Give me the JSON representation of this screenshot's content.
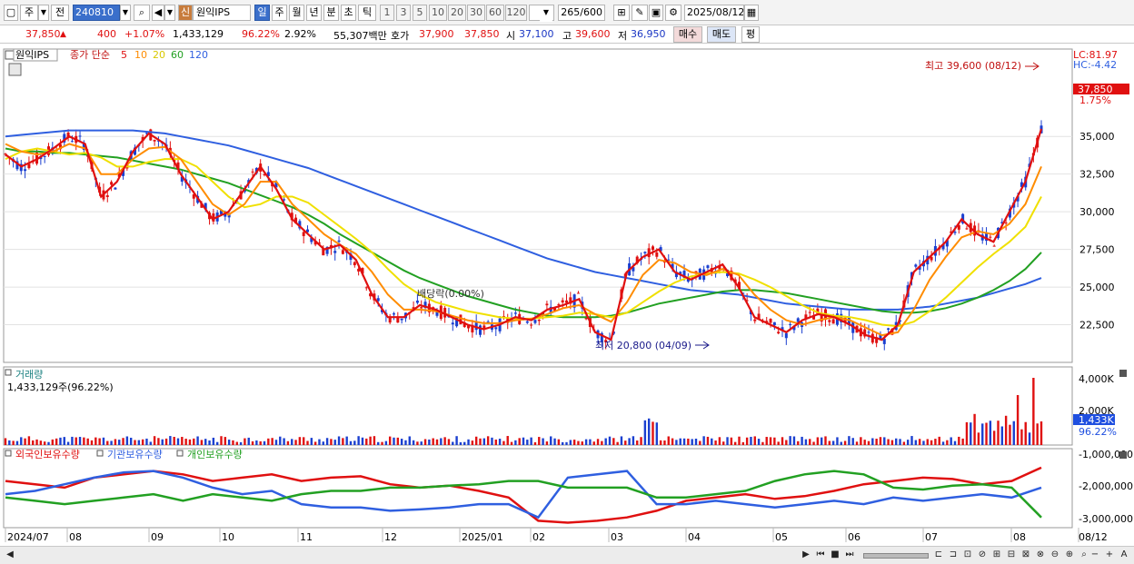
{
  "toolbar": {
    "market": "주",
    "prev": "전",
    "code": "240810",
    "new_tag": "신",
    "stock_name": "원익IPS",
    "periods": [
      "일",
      "주",
      "월",
      "년",
      "분",
      "초",
      "틱"
    ],
    "minutes": [
      "1",
      "3",
      "5",
      "10",
      "20",
      "30",
      "60",
      "120"
    ],
    "count": "265",
    "count_total": "/600",
    "date": "2025/08/12"
  },
  "info": {
    "price": "37,850",
    "change": "400",
    "change_pct": "+1.07%",
    "volume": "1,433,129",
    "vol_ratio": "96.22%",
    "turnover": "2.92%",
    "amount": "55,307백만",
    "quote_label": "호가",
    "ask": "37,900",
    "bid": "37,850",
    "open_label": "시",
    "open": "37,100",
    "high_label": "고",
    "high": "39,600",
    "low_label": "저",
    "low": "36,950",
    "buy": "매수",
    "sell": "매도",
    "avg": "평"
  },
  "chart_data": {
    "type": "line",
    "title": "원익IPS",
    "legend": [
      "종가 단순",
      "5",
      "10",
      "20",
      "60",
      "120"
    ],
    "colors": {
      "ma5": "#e01010",
      "ma10": "#ff8c00",
      "ma20": "#f0e000",
      "ma60": "#22a022",
      "ma120": "#2f5fe0"
    },
    "x_labels": [
      "2024/07",
      "08",
      "09",
      "10",
      "11",
      "12",
      "2025/01",
      "02",
      "03",
      "04",
      "05",
      "06",
      "07",
      "08",
      "08/12"
    ],
    "y_ticks": [
      22500,
      25000,
      27500,
      30000,
      32500,
      35000
    ],
    "ylim": [
      20000,
      40800
    ],
    "lc": "LC:81.97",
    "hc": "HC:-4.42",
    "last_price": "37,850",
    "last_change": "1.75%",
    "high_note": "최고 39,600 (08/12)",
    "low_note": "최저 20,800 (04/09)",
    "dividend_note": "배당락(0.00%)",
    "ma5": [
      33800,
      33000,
      33500,
      34200,
      35000,
      34500,
      31000,
      32000,
      34000,
      35200,
      34500,
      32500,
      31000,
      29500,
      30000,
      31500,
      33000,
      31500,
      29500,
      28500,
      27500,
      27800,
      26800,
      24500,
      23000,
      23000,
      23800,
      23500,
      23000,
      22500,
      22200,
      22500,
      23000,
      22800,
      23500,
      23800,
      24200,
      22000,
      21500,
      26000,
      27000,
      27500,
      26000,
      25500,
      26000,
      26500,
      25000,
      23000,
      22500,
      22000,
      22800,
      23200,
      23000,
      22500,
      21800,
      21500,
      22500,
      26000,
      27000,
      28000,
      29500,
      28500,
      28000,
      30000,
      32000,
      35500
    ],
    "ma10": [
      34500,
      34000,
      33800,
      34000,
      34500,
      34200,
      32500,
      32500,
      33500,
      34200,
      34300,
      33500,
      32000,
      30500,
      29800,
      30500,
      32000,
      32000,
      30500,
      29500,
      28500,
      27800,
      27200,
      26000,
      24500,
      23500,
      23500,
      23400,
      23100,
      22800,
      22600,
      22600,
      22800,
      22900,
      23200,
      23600,
      23800,
      23200,
      22700,
      24000,
      25800,
      26800,
      26600,
      26000,
      25800,
      26200,
      25800,
      24500,
      23500,
      22800,
      22500,
      22800,
      23000,
      22800,
      22300,
      21800,
      22000,
      23500,
      25500,
      27000,
      28300,
      28700,
      28500,
      29200,
      30500,
      33000
    ],
    "ma20": [
      33500,
      34000,
      34200,
      34000,
      33800,
      33900,
      33600,
      33000,
      33000,
      33300,
      33500,
      33500,
      33000,
      32000,
      31000,
      30300,
      30500,
      31000,
      31000,
      30600,
      29800,
      29000,
      28200,
      27300,
      26200,
      25200,
      24500,
      24000,
      23700,
      23400,
      23200,
      23000,
      22900,
      22900,
      23000,
      23100,
      23300,
      23200,
      23000,
      23300,
      24000,
      24700,
      25300,
      25700,
      25900,
      26000,
      25900,
      25500,
      25000,
      24400,
      23800,
      23300,
      23100,
      23000,
      22800,
      22500,
      22400,
      22700,
      23400,
      24300,
      25300,
      26300,
      27200,
      28000,
      29000,
      31000
    ],
    "ma60": [
      34200,
      34000,
      34000,
      33900,
      33900,
      33800,
      33700,
      33600,
      33400,
      33200,
      33000,
      32800,
      32500,
      32200,
      31900,
      31500,
      31100,
      30700,
      30300,
      29800,
      29200,
      28500,
      27900,
      27300,
      26700,
      26100,
      25600,
      25200,
      24800,
      24400,
      24100,
      23800,
      23500,
      23300,
      23100,
      23000,
      23000,
      23000,
      23100,
      23300,
      23600,
      23900,
      24100,
      24300,
      24500,
      24700,
      24800,
      24800,
      24700,
      24600,
      24400,
      24200,
      24000,
      23800,
      23600,
      23400,
      23300,
      23300,
      23400,
      23600,
      23900,
      24300,
      24800,
      25400,
      26200,
      27300
    ],
    "ma120": [
      35000,
      35100,
      35200,
      35300,
      35400,
      35400,
      35400,
      35400,
      35400,
      35300,
      35200,
      35000,
      34800,
      34600,
      34400,
      34100,
      33800,
      33500,
      33200,
      32900,
      32500,
      32100,
      31700,
      31300,
      30900,
      30500,
      30100,
      29700,
      29300,
      28900,
      28500,
      28100,
      27700,
      27300,
      26900,
      26600,
      26300,
      26000,
      25800,
      25600,
      25400,
      25200,
      25000,
      24800,
      24700,
      24600,
      24500,
      24300,
      24100,
      23900,
      23800,
      23700,
      23600,
      23500,
      23500,
      23500,
      23500,
      23600,
      23700,
      23900,
      24100,
      24300,
      24600,
      24900,
      25200,
      25600
    ],
    "volume_label": "거래량",
    "volume_value": "1,433,129주(96.22%)",
    "volume_ticks": [
      "4,000K",
      "2,000K"
    ],
    "volume_last": "1,433K",
    "volume_last_pct": "96.22%",
    "holdings_legend": [
      "외국인보유수량",
      "기관보유수량",
      "개인보유수량"
    ],
    "holdings_colors": [
      "#e01010",
      "#2f5fe0",
      "#22a022"
    ],
    "holdings_ticks": [
      "-1,000,000",
      "-2,000,000",
      "-3,000,000"
    ]
  },
  "scrollbar": {
    "left_arrow": "◀"
  }
}
